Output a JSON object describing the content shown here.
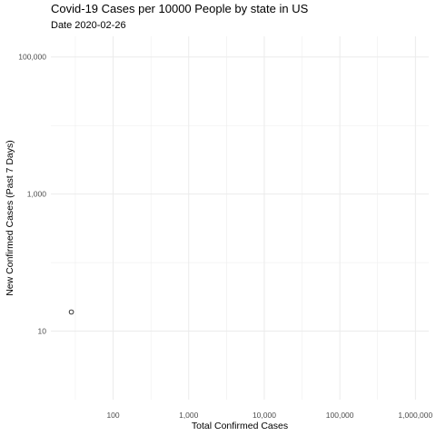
{
  "chart_data": {
    "type": "scatter",
    "title": "Covid-19 Cases per 10000 People by state in US",
    "subtitle": "Date 2020-02-26",
    "xlabel": "Total Confirmed Cases",
    "ylabel": "New Confirmed Cases (Past 7 Days)",
    "x_scale": "log10",
    "y_scale": "log10",
    "xlim": [
      15,
      1500000
    ],
    "ylim": [
      1,
      200000
    ],
    "x_ticks": [
      100,
      1000,
      10000,
      100000,
      1000000
    ],
    "x_tick_labels": [
      "100",
      "1,000",
      "10,000",
      "100,000",
      "1,000,000"
    ],
    "y_ticks": [
      10,
      1000,
      100000
    ],
    "y_tick_labels": [
      "10",
      "1,000",
      "100,000"
    ],
    "grid": true,
    "points": [
      {
        "x": 28,
        "y": 19
      }
    ],
    "marker": "open-circle"
  }
}
